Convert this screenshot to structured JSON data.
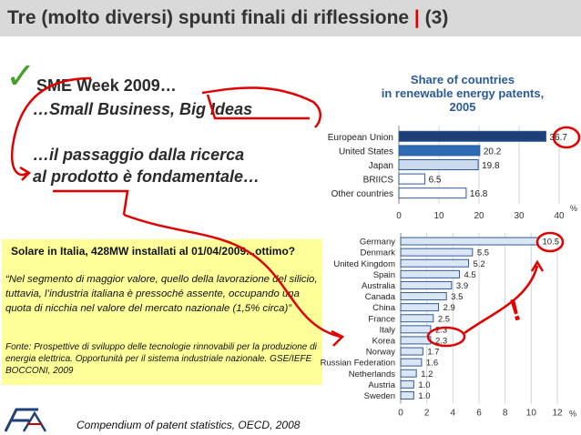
{
  "slide": {
    "title": "Tre (molto diversi) spunti finali di riflessione",
    "title_separator": "|",
    "title_number": "(3)",
    "checkmark": "✓",
    "line1": "SME Week 2009…",
    "line2": "…Small Business, Big Ideas",
    "line3": "…il passaggio dalla ricerca",
    "line4": "al prodotto è fondamentale…",
    "callout_heading": "Solare in Italia, 428MW installati al 01/04/2009...ottimo?",
    "callout_quote": "“Nel segmento di maggior valore, quello della lavorazione del silicio, tuttavia, l’industria italiana è pressoché assente, occupando una quota di nicchia nel valore del mercato nazionale (1,5% circa)”",
    "callout_source": "Fonte: Prospettive di sviluppo delle tecnologie rinnovabili per la produzione di energia elettrica. Opportunità per il sistema industriale nazionale. GSE/IEFE BOCCONI, 2009",
    "footer": "Compendium of patent statistics, OECD, 2008",
    "annotation_exclamation": "!",
    "colors": {
      "title_bar": "#d9d9d9",
      "accent_red": "#e00000",
      "check_green": "#46a02a",
      "callout_bg": "#ffff99",
      "bar_dark": "#1f3f77",
      "bar_mid": "#2e6bb5",
      "bar_light": "#dbe6f4",
      "title_blue": "#2a5a9a"
    }
  },
  "chart_data": [
    {
      "type": "bar",
      "orientation": "horizontal",
      "title": "Share of countries in renewable energy patents, 2005",
      "title_lines": [
        "Share of countries",
        "in renewable energy patents,",
        "2005"
      ],
      "categories": [
        "European Union",
        "United States",
        "Japan",
        "BRIICS",
        "Other countries"
      ],
      "values": [
        36.7,
        20.2,
        19.8,
        6.5,
        16.8
      ],
      "value_labels": [
        "36.7",
        "20.2",
        "19.8",
        "6.5",
        "16.8"
      ],
      "xlim": [
        0,
        40
      ],
      "ticks": [
        "0",
        "10",
        "20",
        "30",
        "40"
      ],
      "unit": "%",
      "grid": true
    },
    {
      "type": "bar",
      "orientation": "horizontal",
      "categories": [
        "Germany",
        "Denmark",
        "United Kingdom",
        "Spain",
        "Australia",
        "Canada",
        "China",
        "France",
        "Italy",
        "Korea",
        "Norway",
        "Russian Federation",
        "Netherlands",
        "Austria",
        "Sweden"
      ],
      "values": [
        10.5,
        5.5,
        5.2,
        4.5,
        3.9,
        3.5,
        2.9,
        2.5,
        2.3,
        2.3,
        1.7,
        1.6,
        1.2,
        1.0,
        1.0
      ],
      "value_labels": [
        "10.5",
        "5.5",
        "5.2",
        "4.5",
        "3.9",
        "3.5",
        "2.9",
        "2.5",
        "2.3",
        "2.3",
        "1.7",
        "1.6",
        "1.2",
        "1.0",
        "1.0"
      ],
      "xlim": [
        0,
        12
      ],
      "ticks": [
        "0",
        "2",
        "4",
        "6",
        "8",
        "10",
        "12"
      ],
      "unit": "%",
      "grid": true
    }
  ]
}
